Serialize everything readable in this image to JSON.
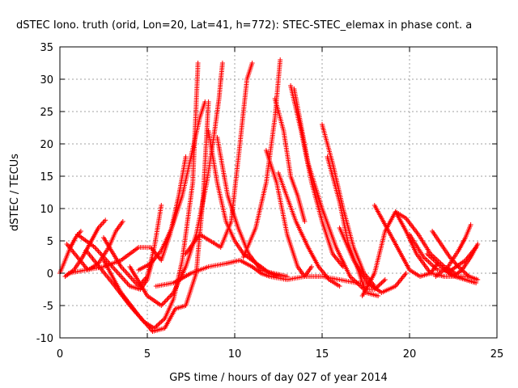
{
  "chart_data": {
    "type": "scatter",
    "title": "dSTEC Iono. truth (orid, Lon=20, Lat=41, h=772): STEC-STEC_elemax in phase cont. a",
    "xlabel": "GPS time / hours of day 027 of year 2014",
    "ylabel": "dSTEC  / TECUs",
    "xlim": [
      0,
      25
    ],
    "ylim": [
      -10,
      35
    ],
    "xticks": [
      0,
      5,
      10,
      15,
      20,
      25
    ],
    "yticks": [
      -10,
      -5,
      0,
      5,
      10,
      15,
      20,
      25,
      30,
      35
    ],
    "grid": true,
    "marker": "+",
    "color": "#ff0000",
    "series": [
      {
        "x": [
          0.0,
          0.3,
          0.6,
          0.9,
          1.2
        ],
        "y": [
          0.0,
          2.0,
          4.0,
          5.5,
          6.5
        ]
      },
      {
        "x": [
          0.3,
          0.8,
          1.3,
          1.8,
          2.2,
          2.6
        ],
        "y": [
          -0.5,
          0.5,
          2.5,
          5.0,
          7.0,
          8.2
        ]
      },
      {
        "x": [
          0.4,
          1.0,
          1.6,
          2.2,
          2.8,
          3.2,
          3.6
        ],
        "y": [
          4.5,
          2.5,
          0.5,
          1.5,
          4.0,
          6.5,
          8.0
        ]
      },
      {
        "x": [
          1.0,
          2.0,
          3.0,
          4.0,
          4.6,
          5.0,
          5.3
        ],
        "y": [
          6.0,
          4.0,
          1.0,
          -2.0,
          -2.5,
          -1.0,
          2.0
        ]
      },
      {
        "x": [
          2.5,
          3.5,
          4.5,
          5.0,
          5.4,
          5.8
        ],
        "y": [
          5.5,
          1.0,
          -2.0,
          -0.5,
          4.0,
          10.5
        ]
      },
      {
        "x": [
          0.5,
          1.5,
          2.5,
          3.5,
          4.5,
          5.2,
          5.8,
          6.3,
          6.8,
          7.2
        ],
        "y": [
          0.0,
          0.5,
          1.0,
          2.0,
          4.0,
          4.0,
          2.0,
          6.0,
          12.0,
          18.0
        ]
      },
      {
        "x": [
          1.5,
          3.0,
          4.0,
          4.8,
          5.4,
          6.0,
          6.5,
          7.0,
          7.6,
          7.9
        ],
        "y": [
          3.5,
          -1.5,
          -5.0,
          -7.5,
          -8.5,
          -7.0,
          -4.0,
          2.0,
          14.0,
          32.5
        ]
      },
      {
        "x": [
          2.5,
          3.5,
          4.5,
          5.3,
          6.0,
          6.6,
          7.2,
          7.8,
          8.2,
          8.5
        ],
        "y": [
          2.0,
          -3.0,
          -6.5,
          -9.0,
          -8.5,
          -5.5,
          -5.0,
          0.0,
          12.0,
          26.5
        ]
      },
      {
        "x": [
          4.0,
          5.0,
          5.8,
          6.5,
          7.2,
          7.8,
          8.4,
          8.8,
          9.1,
          9.3
        ],
        "y": [
          1.0,
          -3.5,
          -5.0,
          -3.0,
          1.0,
          6.0,
          14.0,
          21.0,
          27.0,
          32.5
        ]
      },
      {
        "x": [
          4.5,
          5.2,
          5.8,
          6.4,
          7.0,
          7.5,
          8.0,
          8.3
        ],
        "y": [
          0.5,
          1.5,
          3.5,
          7.0,
          12.0,
          18.0,
          24.0,
          26.5
        ]
      },
      {
        "x": [
          5.5,
          6.5,
          7.5,
          8.5,
          9.5,
          10.3,
          11.0,
          11.5,
          12.0,
          13.0,
          14.0,
          15.0,
          16.0,
          17.0,
          17.5
        ],
        "y": [
          -2.0,
          -1.5,
          0.0,
          1.0,
          1.5,
          2.0,
          1.0,
          0.0,
          -0.5,
          -1.0,
          -0.5,
          -0.5,
          -1.0,
          -1.5,
          -1.5
        ]
      },
      {
        "x": [
          7.2,
          8.0,
          8.6,
          9.2,
          9.8,
          10.3,
          10.7,
          11.0
        ],
        "y": [
          3.0,
          6.0,
          5.0,
          4.0,
          8.0,
          20.0,
          30.0,
          32.5
        ]
      },
      {
        "x": [
          8.5,
          9.0,
          9.5,
          10.0,
          10.5,
          11.0,
          11.5,
          12.0,
          12.5
        ],
        "y": [
          22.0,
          14.0,
          8.0,
          5.0,
          3.0,
          2.0,
          1.0,
          0.0,
          -0.5
        ]
      },
      {
        "x": [
          9.0,
          9.6,
          10.2,
          10.8,
          11.5,
          12.2,
          13.0
        ],
        "y": [
          21.0,
          12.0,
          7.0,
          3.0,
          0.5,
          0.0,
          -0.5
        ]
      },
      {
        "x": [
          10.5,
          11.2,
          11.8,
          12.3,
          12.6
        ],
        "y": [
          2.5,
          7.0,
          14.0,
          24.0,
          33.0
        ]
      },
      {
        "x": [
          11.8,
          12.4,
          13.0,
          13.6,
          14.0,
          14.4
        ],
        "y": [
          19.0,
          14.0,
          6.0,
          1.0,
          -0.5,
          1.0
        ]
      },
      {
        "x": [
          12.3,
          12.8,
          13.2,
          13.6,
          14.0
        ],
        "y": [
          27.0,
          22.0,
          15.0,
          12.0,
          8.0
        ]
      },
      {
        "x": [
          13.2,
          13.8,
          14.4,
          15.0,
          15.6,
          16.2
        ],
        "y": [
          29.0,
          22.0,
          14.0,
          8.0,
          3.0,
          1.0
        ]
      },
      {
        "x": [
          12.5,
          13.5,
          14.2,
          14.8,
          15.4,
          16.0
        ],
        "y": [
          15.5,
          8.0,
          4.0,
          1.0,
          -1.0,
          -2.0
        ]
      },
      {
        "x": [
          13.4,
          14.2,
          15.0,
          15.8,
          16.6,
          17.4,
          18.0,
          18.6
        ],
        "y": [
          28.5,
          17.0,
          10.0,
          4.0,
          -0.5,
          -2.5,
          -2.5,
          -1.0
        ]
      },
      {
        "x": [
          15.0,
          15.6,
          16.2,
          16.8,
          17.4,
          18.0
        ],
        "y": [
          23.0,
          17.0,
          10.0,
          4.0,
          0.0,
          -2.0
        ]
      },
      {
        "x": [
          15.3,
          16.0,
          16.5,
          17.0,
          17.5,
          18.2
        ],
        "y": [
          18.0,
          11.0,
          4.5,
          1.0,
          -3.0,
          -3.5
        ]
      },
      {
        "x": [
          16.0,
          16.8,
          17.6,
          18.4,
          19.2,
          19.8
        ],
        "y": [
          7.0,
          2.0,
          -1.5,
          -3.0,
          -2.0,
          0.0
        ]
      },
      {
        "x": [
          17.3,
          18.0,
          18.6,
          19.2,
          19.8,
          20.5,
          21.2,
          22.0,
          22.6
        ],
        "y": [
          -3.5,
          0.0,
          6.5,
          9.5,
          8.5,
          6.0,
          3.0,
          1.0,
          0.0
        ]
      },
      {
        "x": [
          18.0,
          18.7,
          19.4,
          20.0,
          20.6,
          21.2,
          21.6
        ],
        "y": [
          10.5,
          7.0,
          3.5,
          0.5,
          -0.5,
          0.0,
          1.5
        ]
      },
      {
        "x": [
          19.2,
          19.8,
          20.4,
          21.2,
          22.0,
          22.8,
          23.4
        ],
        "y": [
          9.5,
          6.5,
          3.0,
          0.0,
          -0.5,
          -0.5,
          -0.5
        ]
      },
      {
        "x": [
          20.0,
          20.8,
          21.6,
          22.4,
          23.2,
          23.8
        ],
        "y": [
          6.0,
          2.5,
          0.5,
          0.5,
          2.0,
          4.0
        ]
      },
      {
        "x": [
          21.3,
          21.8,
          22.3,
          22.8,
          23.4,
          23.9
        ],
        "y": [
          6.5,
          4.5,
          2.5,
          1.0,
          -0.5,
          -1.0
        ]
      },
      {
        "x": [
          21.0,
          21.8,
          22.5,
          23.0,
          23.5,
          23.9
        ],
        "y": [
          3.0,
          1.0,
          -0.5,
          0.5,
          2.5,
          4.5
        ]
      },
      {
        "x": [
          21.5,
          22.2,
          22.8,
          23.2,
          23.5
        ],
        "y": [
          -0.5,
          1.0,
          3.5,
          5.5,
          7.5
        ]
      },
      {
        "x": [
          22.0,
          22.6,
          23.2,
          23.8
        ],
        "y": [
          0.5,
          -0.5,
          -1.0,
          -1.5
        ]
      }
    ]
  }
}
